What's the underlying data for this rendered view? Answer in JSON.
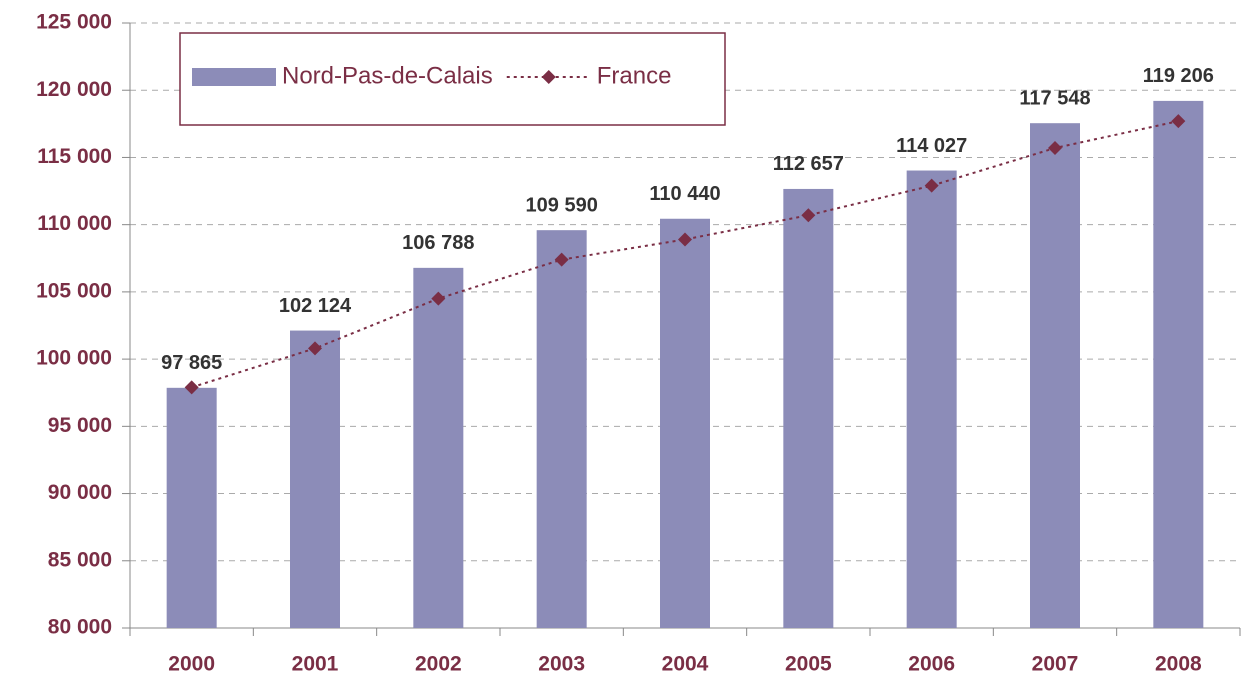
{
  "chart_data": {
    "type": "bar",
    "categories": [
      "2000",
      "2001",
      "2002",
      "2003",
      "2004",
      "2005",
      "2006",
      "2007",
      "2008"
    ],
    "series": [
      {
        "name": "Nord-Pas-de-Calais",
        "type": "bar",
        "color": "#8c8cb8",
        "values": [
          97865,
          102124,
          106788,
          109590,
          110440,
          112657,
          114027,
          117548,
          119206
        ],
        "value_labels": [
          "97 865",
          "102 124",
          "106 788",
          "109 590",
          "110 440",
          "112 657",
          "114 027",
          "117 548",
          "119 206"
        ]
      },
      {
        "name": "France",
        "type": "line",
        "color": "#7a2e45",
        "values": [
          97900,
          100800,
          104500,
          107400,
          108900,
          110700,
          112900,
          115700,
          117700
        ]
      }
    ],
    "ylim": [
      80000,
      125000
    ],
    "yticks": [
      {
        "value": 80000,
        "label": "80 000"
      },
      {
        "value": 85000,
        "label": "85 000"
      },
      {
        "value": 90000,
        "label": "90 000"
      },
      {
        "value": 95000,
        "label": "95 000"
      },
      {
        "value": 100000,
        "label": "100 000"
      },
      {
        "value": 105000,
        "label": "105 000"
      },
      {
        "value": 110000,
        "label": "110 000"
      },
      {
        "value": 115000,
        "label": "115 000"
      },
      {
        "value": 120000,
        "label": "120 000"
      },
      {
        "value": 125000,
        "label": "125 000"
      }
    ],
    "grid": true,
    "legend": "top-left"
  }
}
